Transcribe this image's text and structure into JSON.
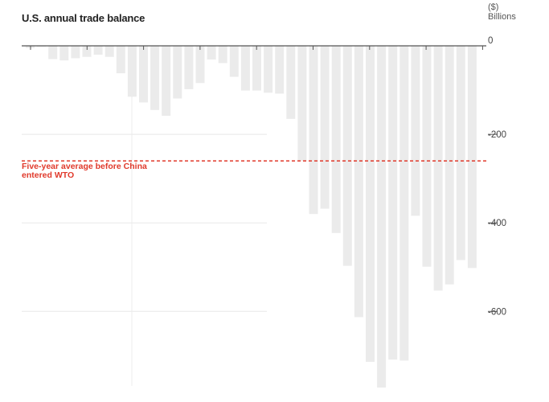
{
  "chart_data": {
    "type": "bar",
    "title": "U.S. annual trade balance",
    "unit_label": [
      "($)",
      "Billions"
    ],
    "ylim": [
      -780,
      10
    ],
    "yticks": [
      0,
      -200,
      -400,
      -600
    ],
    "ytick_labels": [
      "0",
      "-200",
      "-400",
      "-600"
    ],
    "grid": true,
    "values": [
      -5,
      -2,
      -30,
      -33,
      -28,
      -25,
      -20,
      -25,
      -62,
      -115,
      -128,
      -145,
      -158,
      -119,
      -98,
      -84,
      -31,
      -39,
      -70,
      -101,
      -101,
      -106,
      -108,
      -165,
      -260,
      -380,
      -368,
      -423,
      -497,
      -613,
      -714,
      -772,
      -709,
      -711,
      -384,
      -499,
      -553,
      -539,
      -484,
      -502
    ],
    "reference_line": {
      "value": -260,
      "label": "Five-year average before China entered WTO",
      "color": "#e0392b"
    },
    "bar_color": "#ebebeb"
  },
  "title": "U.S. annual trade balance",
  "unit": {
    "line1": "($)",
    "line2": "Billions"
  },
  "annotation": "Five-year average before China entered WTO"
}
